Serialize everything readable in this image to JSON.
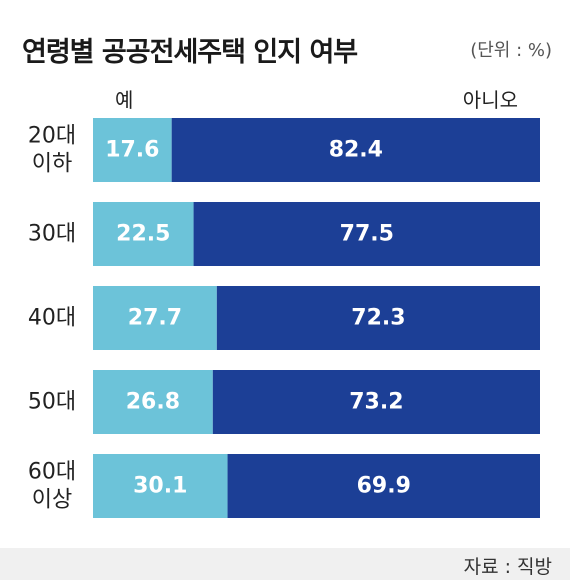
{
  "chart_data": {
    "type": "bar",
    "stacked": true,
    "orientation": "horizontal",
    "title": "연령별 공공전세주택 인지 여부",
    "unit": "(단위 : %)",
    "categories": [
      [
        "20대",
        "이하"
      ],
      [
        "30대"
      ],
      [
        "40대"
      ],
      [
        "50대"
      ],
      [
        "60대",
        "이상"
      ]
    ],
    "series": [
      {
        "name": "예",
        "values": [
          17.6,
          22.5,
          27.7,
          26.8,
          30.1
        ],
        "color": "#6cc3d9"
      },
      {
        "name": "아니오",
        "values": [
          82.4,
          77.5,
          72.3,
          73.2,
          69.9
        ],
        "color": "#1c3f96"
      }
    ],
    "xlim": [
      0,
      100
    ],
    "grid": false,
    "legend_placement": "top"
  },
  "source": "자료 : 직방"
}
